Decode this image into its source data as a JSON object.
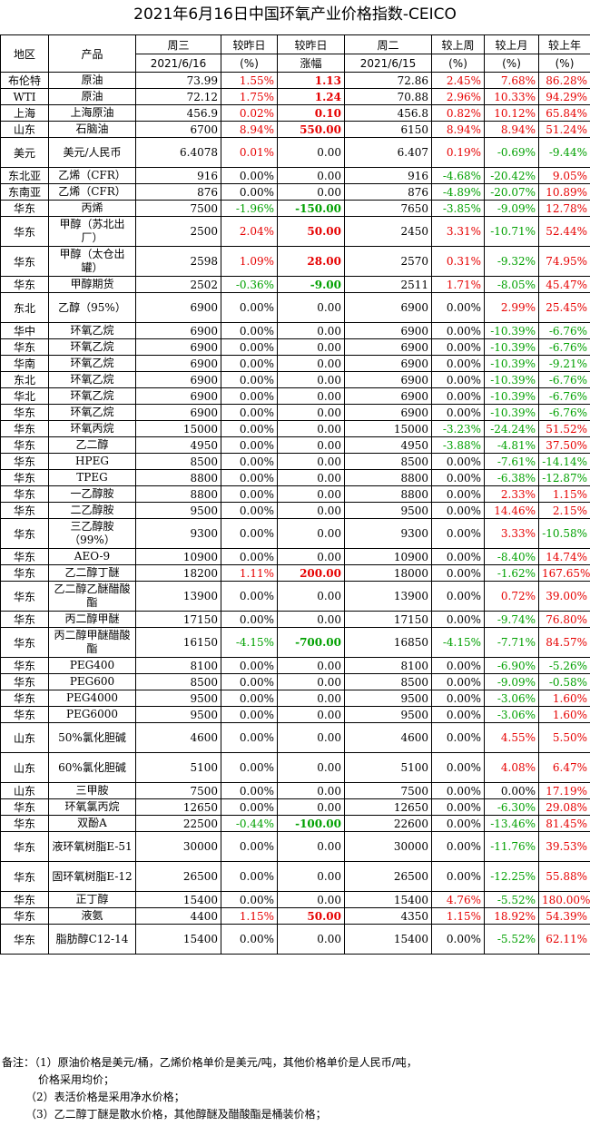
{
  "title": "2021年6月16日中国环氧产业价格指数-CEICO",
  "header": {
    "row1": [
      "地区",
      "产品",
      "周三",
      "较昨日",
      "较昨日",
      "周二",
      "较上周",
      "较上月",
      "较上年"
    ],
    "row2": [
      "2021/6/16",
      "(%)",
      "涨幅",
      "2021/6/15",
      "(%)",
      "(%)",
      "(%)"
    ]
  },
  "colors": {
    "up": "#e60000",
    "down": "#00a000"
  },
  "rows": [
    {
      "region": "布伦特",
      "product": "原油",
      "wed": "73.99",
      "dpct": "1.55%",
      "damt": "1.13",
      "tue": "72.86",
      "wk": "2.45%",
      "mo": "7.68%",
      "yr": "86.28%"
    },
    {
      "region": "WTI",
      "product": "原油",
      "wed": "72.12",
      "dpct": "1.75%",
      "damt": "1.24",
      "tue": "70.88",
      "wk": "2.96%",
      "mo": "10.33%",
      "yr": "94.29%"
    },
    {
      "region": "上海",
      "product": "上海原油",
      "wed": "456.9",
      "dpct": "0.02%",
      "damt": "0.10",
      "tue": "456.8",
      "wk": "0.82%",
      "mo": "10.12%",
      "yr": "65.84%"
    },
    {
      "region": "山东",
      "product": "石脑油",
      "wed": "6700",
      "dpct": "8.94%",
      "damt": "550.00",
      "tue": "6150",
      "wk": "8.94%",
      "mo": "8.94%",
      "yr": "51.24%"
    },
    {
      "region": "美元",
      "product": "美元/人民币",
      "wed": "6.4078",
      "dpct": "0.01%",
      "damt": "0.00",
      "tue": "6.407",
      "wk": "0.19%",
      "mo": "-0.69%",
      "yr": "-9.44%",
      "tall": true
    },
    {
      "region": "东北亚",
      "product": "乙烯（CFR）",
      "wed": "916",
      "dpct": "0.00%",
      "damt": "0.00",
      "tue": "916",
      "wk": "-4.68%",
      "mo": "-20.42%",
      "yr": "9.05%"
    },
    {
      "region": "东南亚",
      "product": "乙烯（CFR）",
      "wed": "876",
      "dpct": "0.00%",
      "damt": "0.00",
      "tue": "876",
      "wk": "-4.89%",
      "mo": "-20.07%",
      "yr": "10.89%"
    },
    {
      "region": "华东",
      "product": "丙烯",
      "wed": "7500",
      "dpct": "-1.96%",
      "damt": "-150.00",
      "tue": "7650",
      "wk": "-3.85%",
      "mo": "-9.09%",
      "yr": "12.78%"
    },
    {
      "region": "华东",
      "product": "甲醇（苏北出厂）",
      "wed": "2500",
      "dpct": "2.04%",
      "damt": "50.00",
      "tue": "2450",
      "wk": "3.31%",
      "mo": "-10.71%",
      "yr": "52.44%",
      "tall": true
    },
    {
      "region": "华东",
      "product": "甲醇（太仓出罐）",
      "wed": "2598",
      "dpct": "1.09%",
      "damt": "28.00",
      "tue": "2570",
      "wk": "0.31%",
      "mo": "-9.32%",
      "yr": "74.95%",
      "tall": true
    },
    {
      "region": "华东",
      "product": "甲醇期货",
      "wed": "2502",
      "dpct": "-0.36%",
      "damt": "-9.00",
      "tue": "2511",
      "wk": "1.71%",
      "mo": "-8.05%",
      "yr": "45.47%"
    },
    {
      "region": "东北",
      "product": "乙醇（95%）",
      "wed": "6900",
      "dpct": "0.00%",
      "damt": "0.00",
      "tue": "6900",
      "wk": "0.00%",
      "mo": "2.99%",
      "yr": "25.45%",
      "tall": true
    },
    {
      "region": "华中",
      "product": "环氧乙烷",
      "wed": "6900",
      "dpct": "0.00%",
      "damt": "0.00",
      "tue": "6900",
      "wk": "0.00%",
      "mo": "-10.39%",
      "yr": "-6.76%"
    },
    {
      "region": "华东",
      "product": "环氧乙烷",
      "wed": "6900",
      "dpct": "0.00%",
      "damt": "0.00",
      "tue": "6900",
      "wk": "0.00%",
      "mo": "-10.39%",
      "yr": "-6.76%"
    },
    {
      "region": "华南",
      "product": "环氧乙烷",
      "wed": "6900",
      "dpct": "0.00%",
      "damt": "0.00",
      "tue": "6900",
      "wk": "0.00%",
      "mo": "-10.39%",
      "yr": "-9.21%"
    },
    {
      "region": "东北",
      "product": "环氧乙烷",
      "wed": "6900",
      "dpct": "0.00%",
      "damt": "0.00",
      "tue": "6900",
      "wk": "0.00%",
      "mo": "-10.39%",
      "yr": "-6.76%"
    },
    {
      "region": "华北",
      "product": "环氧乙烷",
      "wed": "6900",
      "dpct": "0.00%",
      "damt": "0.00",
      "tue": "6900",
      "wk": "0.00%",
      "mo": "-10.39%",
      "yr": "-6.76%"
    },
    {
      "region": "华东",
      "product": "环氧乙烷",
      "wed": "6900",
      "dpct": "0.00%",
      "damt": "0.00",
      "tue": "6900",
      "wk": "0.00%",
      "mo": "-10.39%",
      "yr": "-6.76%"
    },
    {
      "region": "华东",
      "product": "环氧丙烷",
      "wed": "15000",
      "dpct": "0.00%",
      "damt": "0.00",
      "tue": "15000",
      "wk": "-3.23%",
      "mo": "-24.24%",
      "yr": "51.52%"
    },
    {
      "region": "华东",
      "product": "乙二醇",
      "wed": "4950",
      "dpct": "0.00%",
      "damt": "0.00",
      "tue": "4950",
      "wk": "-3.88%",
      "mo": "-4.81%",
      "yr": "37.50%"
    },
    {
      "region": "华东",
      "product": "HPEG",
      "wed": "8500",
      "dpct": "0.00%",
      "damt": "0.00",
      "tue": "8500",
      "wk": "0.00%",
      "mo": "-7.61%",
      "yr": "-14.14%"
    },
    {
      "region": "华东",
      "product": "TPEG",
      "wed": "8800",
      "dpct": "0.00%",
      "damt": "0.00",
      "tue": "8800",
      "wk": "0.00%",
      "mo": "-6.38%",
      "yr": "-12.87%"
    },
    {
      "region": "华东",
      "product": "一乙醇胺",
      "wed": "8800",
      "dpct": "0.00%",
      "damt": "0.00",
      "tue": "8800",
      "wk": "0.00%",
      "mo": "2.33%",
      "yr": "1.15%"
    },
    {
      "region": "华东",
      "product": "二乙醇胺",
      "wed": "9500",
      "dpct": "0.00%",
      "damt": "0.00",
      "tue": "9500",
      "wk": "0.00%",
      "mo": "14.46%",
      "yr": "2.15%"
    },
    {
      "region": "华东",
      "product": "三乙醇胺（99%）",
      "wed": "9300",
      "dpct": "0.00%",
      "damt": "0.00",
      "tue": "9300",
      "wk": "0.00%",
      "mo": "3.33%",
      "yr": "-10.58%",
      "tall": true
    },
    {
      "region": "华东",
      "product": "AEO-9",
      "wed": "10900",
      "dpct": "0.00%",
      "damt": "0.00",
      "tue": "10900",
      "wk": "0.00%",
      "mo": "-8.40%",
      "yr": "14.74%"
    },
    {
      "region": "华东",
      "product": "乙二醇丁醚",
      "wed": "18200",
      "dpct": "1.11%",
      "damt": "200.00",
      "tue": "18000",
      "wk": "0.00%",
      "mo": "-1.62%",
      "yr": "167.65%"
    },
    {
      "region": "华东",
      "product": "乙二醇乙醚醋酸酯",
      "wed": "13900",
      "dpct": "0.00%",
      "damt": "0.00",
      "tue": "13900",
      "wk": "0.00%",
      "mo": "0.72%",
      "yr": "39.00%",
      "tall": true
    },
    {
      "region": "华东",
      "product": "丙二醇甲醚",
      "wed": "17150",
      "dpct": "0.00%",
      "damt": "0.00",
      "tue": "17150",
      "wk": "0.00%",
      "mo": "-9.74%",
      "yr": "76.80%"
    },
    {
      "region": "华东",
      "product": "丙二醇甲醚醋酸酯",
      "wed": "16150",
      "dpct": "-4.15%",
      "damt": "-700.00",
      "tue": "16850",
      "wk": "-4.15%",
      "mo": "-7.71%",
      "yr": "84.57%",
      "tall": true
    },
    {
      "region": "华东",
      "product": "PEG400",
      "wed": "8100",
      "dpct": "0.00%",
      "damt": "0.00",
      "tue": "8100",
      "wk": "0.00%",
      "mo": "-6.90%",
      "yr": "-5.26%"
    },
    {
      "region": "华东",
      "product": "PEG600",
      "wed": "8500",
      "dpct": "0.00%",
      "damt": "0.00",
      "tue": "8500",
      "wk": "0.00%",
      "mo": "-9.09%",
      "yr": "-0.58%"
    },
    {
      "region": "华东",
      "product": "PEG4000",
      "wed": "9500",
      "dpct": "0.00%",
      "damt": "0.00",
      "tue": "9500",
      "wk": "0.00%",
      "mo": "-3.06%",
      "yr": "1.60%"
    },
    {
      "region": "华东",
      "product": "PEG6000",
      "wed": "9500",
      "dpct": "0.00%",
      "damt": "0.00",
      "tue": "9500",
      "wk": "0.00%",
      "mo": "-3.06%",
      "yr": "1.60%"
    },
    {
      "region": "山东",
      "product": "50%氯化胆碱",
      "wed": "4600",
      "dpct": "0.00%",
      "damt": "0.00",
      "tue": "4600",
      "wk": "0.00%",
      "mo": "4.55%",
      "yr": "5.50%",
      "tall": true
    },
    {
      "region": "山东",
      "product": "60%氯化胆碱",
      "wed": "5100",
      "dpct": "0.00%",
      "damt": "0.00",
      "tue": "5100",
      "wk": "0.00%",
      "mo": "4.08%",
      "yr": "6.47%",
      "tall": true
    },
    {
      "region": "山东",
      "product": "三甲胺",
      "wed": "7500",
      "dpct": "0.00%",
      "damt": "0.00",
      "tue": "7500",
      "wk": "0.00%",
      "mo": "0.00%",
      "yr": "17.19%"
    },
    {
      "region": "华东",
      "product": "环氧氯丙烷",
      "wed": "12650",
      "dpct": "0.00%",
      "damt": "0.00",
      "tue": "12650",
      "wk": "0.00%",
      "mo": "-6.30%",
      "yr": "29.08%"
    },
    {
      "region": "华东",
      "product": "双酚A",
      "wed": "22500",
      "dpct": "-0.44%",
      "damt": "-100.00",
      "tue": "22600",
      "wk": "0.00%",
      "mo": "-13.46%",
      "yr": "81.45%"
    },
    {
      "region": "华东",
      "product": "液环氧树脂E-51",
      "wed": "30000",
      "dpct": "0.00%",
      "damt": "0.00",
      "tue": "30000",
      "wk": "0.00%",
      "mo": "-11.76%",
      "yr": "39.53%",
      "tall": true
    },
    {
      "region": "华东",
      "product": "固环氧树脂E-12",
      "wed": "26500",
      "dpct": "0.00%",
      "damt": "0.00",
      "tue": "26500",
      "wk": "0.00%",
      "mo": "-12.25%",
      "yr": "55.88%",
      "tall": true
    },
    {
      "region": "华东",
      "product": "正丁醇",
      "wed": "15400",
      "dpct": "0.00%",
      "damt": "0.00",
      "tue": "15400",
      "wk": "4.76%",
      "mo": "-5.52%",
      "yr": "180.00%"
    },
    {
      "region": "华东",
      "product": "液氨",
      "wed": "4400",
      "dpct": "1.15%",
      "damt": "50.00",
      "tue": "4350",
      "wk": "1.15%",
      "mo": "18.92%",
      "yr": "54.39%"
    },
    {
      "region": "华东",
      "product": "脂肪醇C12-14",
      "wed": "15400",
      "dpct": "0.00%",
      "damt": "0.00",
      "tue": "15400",
      "wk": "0.00%",
      "mo": "-5.52%",
      "yr": "62.11%",
      "tall": true
    }
  ],
  "notes": {
    "label": "备注：",
    "n1a": "（1）原油价格是美元/桶，乙烯价格单价是美元/吨，其他价格单价是人民币/吨，",
    "n1b": "价格采用均价；",
    "n2": "（2）表活价格是采用净水价格；",
    "n3": "（3）乙二醇丁醚是散水价格，其他醇醚及醋酸酯是桶装价格；"
  }
}
